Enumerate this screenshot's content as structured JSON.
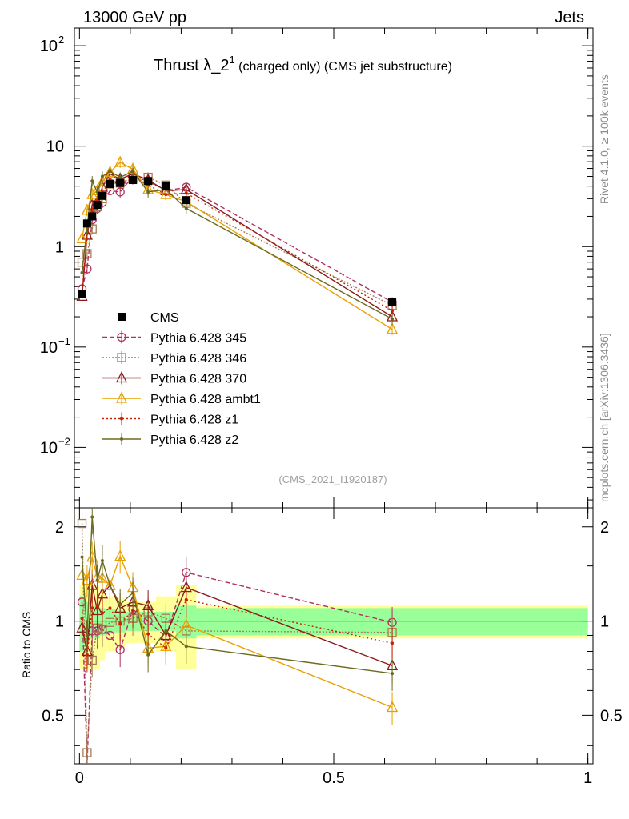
{
  "header": {
    "left": "13000 GeV pp",
    "right": "Jets"
  },
  "title": {
    "main": "Thrust λ_2",
    "superscript": "1",
    "tail": " (charged only) (CMS jet substructure)"
  },
  "side_labels": {
    "top": "Rivet 4.1.0, ≥ 100k events",
    "bottom": "mcplots.cern.ch [arXiv:1306.3436]"
  },
  "watermark": "(CMS_2021_I1920187)",
  "chart_data": {
    "type": "line",
    "title": "Thrust λ_2^1 (charged only) (CMS jet substructure)",
    "xlabel": "",
    "ylabel_main": "",
    "ylabel_ratio": "Ratio to CMS",
    "xlim": [
      -0.01,
      1.01
    ],
    "ylim_main": [
      0.0025,
      150
    ],
    "ylim_ratio": [
      0.35,
      2.3
    ],
    "x_ticks": [
      {
        "v": 0,
        "label": "0"
      },
      {
        "v": 0.5,
        "label": "0.5"
      },
      {
        "v": 1,
        "label": "1"
      }
    ],
    "main_y_ticks": [
      {
        "v": 100,
        "base": "10",
        "exp": "2"
      },
      {
        "v": 10,
        "base": "10",
        "exp": ""
      },
      {
        "v": 1,
        "base": "1",
        "exp": ""
      },
      {
        "v": 0.1,
        "base": "10",
        "exp": "−1"
      },
      {
        "v": 0.01,
        "base": "10",
        "exp": "−2"
      }
    ],
    "ratio_y_ticks": [
      {
        "v": 2,
        "label": "2"
      },
      {
        "v": 1,
        "label": "1"
      },
      {
        "v": 0.5,
        "label": "0.5"
      }
    ],
    "x": [
      0.005,
      0.015,
      0.025,
      0.035,
      0.045,
      0.06,
      0.08,
      0.105,
      0.135,
      0.17,
      0.21,
      0.615
    ],
    "bin_edges": [
      0.0,
      0.01,
      0.02,
      0.03,
      0.04,
      0.05,
      0.07,
      0.09,
      0.12,
      0.15,
      0.19,
      0.23,
      1.0
    ],
    "data": {
      "name": "CMS",
      "values": [
        0.34,
        1.7,
        2.0,
        2.6,
        3.2,
        4.2,
        4.3,
        4.6,
        4.5,
        4.0,
        2.9,
        0.28
      ],
      "stat_band": [
        0.2,
        0.15,
        0.12,
        0.12,
        0.1,
        0.09,
        0.08,
        0.07,
        0.07,
        0.07,
        0.12,
        0.1
      ],
      "total_band": [
        0.3,
        0.3,
        0.3,
        0.3,
        0.25,
        0.2,
        0.18,
        0.15,
        0.15,
        0.2,
        0.3,
        0.12
      ]
    },
    "series": [
      {
        "name": "Pythia 6.428 345",
        "color": "#b03060",
        "marker": "circle",
        "dash": "6,3",
        "values": [
          0.38,
          0.6,
          1.85,
          2.4,
          2.75,
          3.6,
          3.5,
          5.0,
          4.5,
          3.6,
          3.9,
          0.28
        ],
        "ratio": [
          1.15,
          0.35,
          0.93,
          0.93,
          0.94,
          0.9,
          0.81,
          1.09,
          1.0,
          0.89,
          1.43,
          0.99
        ]
      },
      {
        "name": "Pythia 6.428 346",
        "color": "#a67c52",
        "marker": "square",
        "dash": "2,2",
        "values": [
          0.7,
          0.85,
          1.5,
          2.5,
          3.0,
          4.2,
          4.3,
          4.7,
          4.9,
          4.1,
          2.7,
          0.26
        ],
        "ratio": [
          2.05,
          0.38,
          0.75,
          0.95,
          0.94,
          0.99,
          1.0,
          1.02,
          1.07,
          1.02,
          0.93,
          0.92
        ]
      },
      {
        "name": "Pythia 6.428 370",
        "color": "#8b1a1a",
        "marker": "triangle",
        "dash": "",
        "values": [
          0.32,
          1.3,
          2.6,
          2.8,
          3.9,
          5.3,
          4.7,
          5.3,
          4.6,
          3.6,
          3.7,
          0.2
        ],
        "ratio": [
          0.95,
          0.8,
          1.3,
          1.08,
          1.22,
          1.3,
          1.1,
          1.15,
          1.12,
          0.9,
          1.28,
          0.72
        ]
      },
      {
        "name": "Pythia 6.428 ambt1",
        "color": "#e8a000",
        "marker": "triangle",
        "dash": "",
        "values": [
          1.2,
          2.3,
          3.3,
          3.6,
          4.4,
          5.5,
          6.9,
          5.9,
          3.7,
          3.3,
          2.8,
          0.15
        ],
        "ratio": [
          1.4,
          1.35,
          1.6,
          1.38,
          1.37,
          1.3,
          1.61,
          1.28,
          0.82,
          0.83,
          0.97,
          0.53
        ]
      },
      {
        "name": "Pythia 6.428 z1",
        "color": "#cc2200",
        "marker": "dot",
        "dash": "2,3",
        "values": [
          0.35,
          1.35,
          2.2,
          2.9,
          3.4,
          4.7,
          4.2,
          5.0,
          4.1,
          3.3,
          3.4,
          0.23
        ],
        "ratio": [
          1.02,
          0.78,
          1.1,
          1.12,
          1.06,
          1.1,
          0.98,
          1.08,
          0.91,
          0.82,
          1.17,
          0.85
        ]
      },
      {
        "name": "Pythia 6.428 z2",
        "color": "#6b6b1f",
        "marker": "dot",
        "dash": "",
        "values": [
          0.55,
          1.55,
          4.5,
          3.5,
          5.0,
          5.6,
          4.9,
          5.6,
          3.5,
          3.7,
          2.4,
          0.19
        ],
        "ratio": [
          1.6,
          0.9,
          2.15,
          1.35,
          1.56,
          1.3,
          1.13,
          1.23,
          0.78,
          0.93,
          0.83,
          0.68
        ]
      }
    ]
  }
}
